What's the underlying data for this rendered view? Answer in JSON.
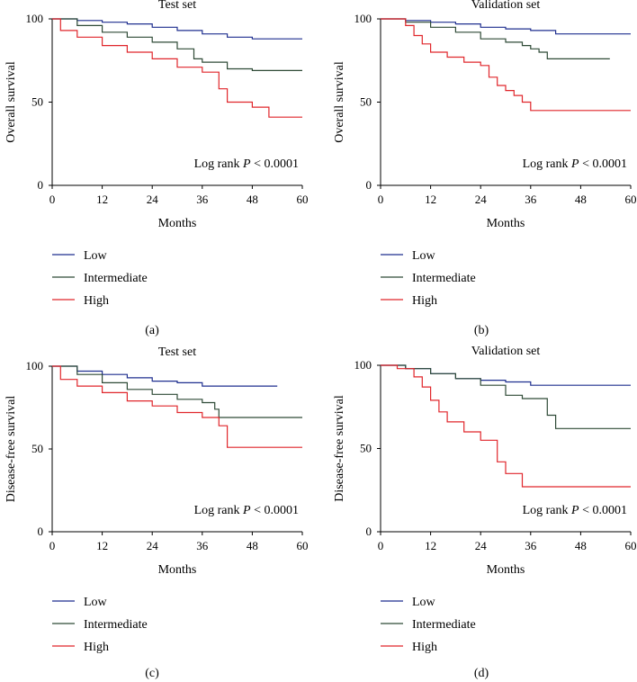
{
  "chart_data": [
    {
      "type": "line",
      "id": "a",
      "title": "Test set",
      "xlabel": "Months",
      "ylabel": "Overall survival",
      "xlim": [
        0,
        60
      ],
      "ylim": [
        0,
        100
      ],
      "xticks": [
        "0",
        "12",
        "24",
        "36",
        "48",
        "60"
      ],
      "yticks": [
        "0",
        "50",
        "100"
      ],
      "logrank": {
        "prefix": "Log rank ",
        "p": "P",
        "suffix": " < 0.0001"
      },
      "caption": "(a)",
      "series": [
        {
          "name": "Low",
          "color": "#1f2f8f",
          "x": [
            0,
            6,
            12,
            18,
            24,
            30,
            36,
            42,
            48,
            54,
            60
          ],
          "y": [
            100,
            99,
            98,
            97,
            95,
            93,
            91,
            89,
            88,
            88,
            88
          ]
        },
        {
          "name": "Intermediate",
          "color": "#2e4a36",
          "x": [
            0,
            6,
            12,
            18,
            24,
            30,
            34,
            36,
            42,
            48,
            54,
            60
          ],
          "y": [
            100,
            96,
            92,
            89,
            86,
            82,
            76,
            74,
            70,
            69,
            69,
            69
          ]
        },
        {
          "name": "High",
          "color": "#e0262b",
          "x": [
            0,
            2,
            6,
            12,
            18,
            24,
            30,
            36,
            40,
            42,
            46,
            48,
            52,
            60
          ],
          "y": [
            100,
            93,
            89,
            84,
            80,
            76,
            71,
            68,
            58,
            50,
            50,
            47,
            41,
            41
          ]
        }
      ]
    },
    {
      "type": "line",
      "id": "b",
      "title": "Validation set",
      "xlabel": "Months",
      "ylabel": "Overall survival",
      "xlim": [
        0,
        60
      ],
      "ylim": [
        0,
        100
      ],
      "xticks": [
        "0",
        "12",
        "24",
        "36",
        "48",
        "60"
      ],
      "yticks": [
        "0",
        "50",
        "100"
      ],
      "logrank": {
        "prefix": "Log rank ",
        "p": "P",
        "suffix": " < 0.0001"
      },
      "caption": "(b)",
      "series": [
        {
          "name": "Low",
          "color": "#1f2f8f",
          "x": [
            0,
            6,
            12,
            18,
            24,
            30,
            36,
            42,
            48,
            60
          ],
          "y": [
            100,
            99,
            98,
            97,
            95,
            94,
            93,
            91,
            91,
            91
          ]
        },
        {
          "name": "Intermediate",
          "color": "#2e4a36",
          "x": [
            0,
            6,
            12,
            18,
            24,
            30,
            34,
            36,
            38,
            40,
            42,
            48,
            55
          ],
          "y": [
            100,
            98,
            95,
            92,
            88,
            86,
            84,
            82,
            80,
            76,
            76,
            76,
            76
          ]
        },
        {
          "name": "High",
          "color": "#e0262b",
          "x": [
            0,
            6,
            8,
            10,
            12,
            16,
            20,
            24,
            26,
            28,
            30,
            32,
            34,
            36,
            48,
            60
          ],
          "y": [
            100,
            96,
            90,
            85,
            80,
            77,
            74,
            72,
            65,
            60,
            57,
            54,
            50,
            45,
            45,
            45
          ]
        }
      ]
    },
    {
      "type": "line",
      "id": "c",
      "title": "Test set",
      "xlabel": "Months",
      "ylabel": "Disease-free survival",
      "xlim": [
        0,
        60
      ],
      "ylim": [
        0,
        100
      ],
      "xticks": [
        "0",
        "12",
        "24",
        "36",
        "48",
        "60"
      ],
      "yticks": [
        "0",
        "50",
        "100"
      ],
      "logrank": {
        "prefix": "Log rank ",
        "p": "P",
        "suffix": " < 0.0001"
      },
      "caption": "(c)",
      "series": [
        {
          "name": "Low",
          "color": "#1f2f8f",
          "x": [
            0,
            6,
            12,
            18,
            24,
            30,
            36,
            42,
            48,
            54
          ],
          "y": [
            100,
            97,
            95,
            93,
            91,
            90,
            88,
            88,
            88,
            88
          ]
        },
        {
          "name": "Intermediate",
          "color": "#2e4a36",
          "x": [
            0,
            6,
            12,
            18,
            24,
            30,
            36,
            39,
            40,
            48,
            60
          ],
          "y": [
            100,
            95,
            90,
            86,
            83,
            80,
            78,
            74,
            69,
            69,
            69
          ]
        },
        {
          "name": "High",
          "color": "#e0262b",
          "x": [
            0,
            2,
            6,
            12,
            18,
            24,
            30,
            36,
            40,
            42,
            48,
            60
          ],
          "y": [
            100,
            92,
            88,
            84,
            79,
            76,
            72,
            69,
            64,
            51,
            51,
            51
          ]
        }
      ]
    },
    {
      "type": "line",
      "id": "d",
      "title": "Validation set",
      "xlabel": "Months",
      "ylabel": "Disease-free survival",
      "xlim": [
        0,
        60
      ],
      "ylim": [
        0,
        100
      ],
      "xticks": [
        "0",
        "12",
        "24",
        "36",
        "48",
        "60"
      ],
      "yticks": [
        "0",
        "50",
        "100"
      ],
      "logrank": {
        "prefix": "Log rank ",
        "p": "P",
        "suffix": " < 0.0001"
      },
      "caption": "(d)",
      "series": [
        {
          "name": "Low",
          "color": "#1f2f8f",
          "x": [
            0,
            6,
            12,
            18,
            24,
            30,
            36,
            48,
            60
          ],
          "y": [
            100,
            98,
            95,
            92,
            91,
            90,
            88,
            88,
            88
          ]
        },
        {
          "name": "Intermediate",
          "color": "#2e4a36",
          "x": [
            0,
            6,
            12,
            18,
            24,
            30,
            34,
            36,
            40,
            42,
            48,
            60
          ],
          "y": [
            100,
            98,
            95,
            92,
            88,
            82,
            80,
            80,
            70,
            62,
            62,
            62
          ]
        },
        {
          "name": "High",
          "color": "#e0262b",
          "x": [
            0,
            4,
            8,
            10,
            12,
            14,
            16,
            20,
            24,
            26,
            28,
            30,
            32,
            34,
            36,
            48,
            60
          ],
          "y": [
            100,
            98,
            93,
            87,
            79,
            72,
            66,
            60,
            55,
            55,
            42,
            35,
            35,
            27,
            27,
            27,
            27
          ]
        }
      ]
    }
  ]
}
